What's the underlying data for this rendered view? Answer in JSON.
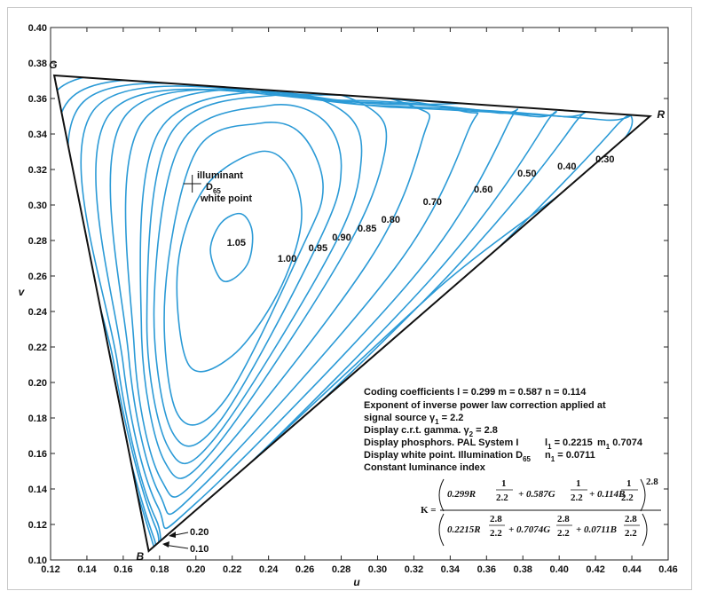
{
  "chart_data": {
    "type": "line",
    "xlabel": "u",
    "ylabel": "v",
    "xlim": [
      0.12,
      0.46
    ],
    "ylim": [
      0.1,
      0.4
    ],
    "x_ticks": [
      "0.12",
      "0.14",
      "0.16",
      "0.18",
      "0.20",
      "0.22",
      "0.24",
      "0.26",
      "0.28",
      "0.30",
      "0.32",
      "0.34",
      "0.36",
      "0.38",
      "0.40",
      "0.42",
      "0.44",
      "0.46"
    ],
    "y_ticks": [
      "0.10",
      "0.12",
      "0.14",
      "0.16",
      "0.18",
      "0.20",
      "0.22",
      "0.24",
      "0.26",
      "0.28",
      "0.30",
      "0.32",
      "0.34",
      "0.36",
      "0.38",
      "0.40"
    ],
    "grid": false,
    "line_color": "#2b9ad6",
    "triangle": {
      "vertices": [
        {
          "name": "G",
          "u": 0.122,
          "v": 0.373
        },
        {
          "name": "R",
          "u": 0.45,
          "v": 0.35
        },
        {
          "name": "B",
          "u": 0.174,
          "v": 0.105
        }
      ]
    },
    "white_point": {
      "u": 0.198,
      "v": 0.312
    },
    "white_point_label": [
      "illuminant",
      "D",
      "65",
      "white point"
    ],
    "contours": [
      {
        "level": "0.10",
        "points": [
          [
            0.177,
            0.107
          ],
          [
            0.148,
            0.215
          ],
          [
            0.124,
            0.365
          ],
          [
            0.3,
            0.357
          ],
          [
            0.44,
            0.349
          ],
          [
            0.33,
            0.25
          ],
          [
            0.18,
            0.107
          ]
        ]
      },
      {
        "level": "0.20",
        "points": [
          [
            0.177,
            0.112
          ],
          [
            0.152,
            0.21
          ],
          [
            0.132,
            0.361
          ],
          [
            0.31,
            0.355
          ],
          [
            0.424,
            0.348
          ],
          [
            0.43,
            0.343
          ],
          [
            0.34,
            0.25
          ],
          [
            0.187,
            0.111
          ]
        ]
      },
      {
        "level": "0.30",
        "points": [
          [
            0.178,
            0.118
          ],
          [
            0.155,
            0.21
          ],
          [
            0.138,
            0.358
          ],
          [
            0.3,
            0.356
          ],
          [
            0.4,
            0.35
          ],
          [
            0.407,
            0.344
          ],
          [
            0.335,
            0.256
          ],
          [
            0.194,
            0.118
          ]
        ]
      },
      {
        "level": "0.40",
        "points": [
          [
            0.178,
            0.123
          ],
          [
            0.157,
            0.21
          ],
          [
            0.145,
            0.355
          ],
          [
            0.29,
            0.358
          ],
          [
            0.385,
            0.35
          ],
          [
            0.392,
            0.345
          ],
          [
            0.33,
            0.259
          ],
          [
            0.198,
            0.124
          ]
        ]
      },
      {
        "level": "0.50",
        "points": [
          [
            0.179,
            0.13
          ],
          [
            0.16,
            0.21
          ],
          [
            0.153,
            0.352
          ],
          [
            0.28,
            0.359
          ],
          [
            0.365,
            0.352
          ],
          [
            0.372,
            0.346
          ],
          [
            0.322,
            0.262
          ],
          [
            0.2,
            0.132
          ]
        ]
      },
      {
        "level": "0.60",
        "points": [
          [
            0.18,
            0.137
          ],
          [
            0.163,
            0.215
          ],
          [
            0.161,
            0.35
          ],
          [
            0.27,
            0.362
          ],
          [
            0.346,
            0.353
          ],
          [
            0.35,
            0.342
          ],
          [
            0.31,
            0.265
          ],
          [
            0.202,
            0.14
          ]
        ]
      },
      {
        "level": "0.70",
        "points": [
          [
            0.181,
            0.145
          ],
          [
            0.166,
            0.22
          ],
          [
            0.17,
            0.346
          ],
          [
            0.26,
            0.366
          ],
          [
            0.321,
            0.355
          ],
          [
            0.325,
            0.338
          ],
          [
            0.295,
            0.268
          ],
          [
            0.205,
            0.15
          ]
        ]
      },
      {
        "level": "0.80",
        "points": [
          [
            0.183,
            0.155
          ],
          [
            0.17,
            0.23
          ],
          [
            0.18,
            0.342
          ],
          [
            0.25,
            0.365
          ],
          [
            0.295,
            0.355
          ],
          [
            0.304,
            0.33
          ],
          [
            0.28,
            0.27
          ],
          [
            0.208,
            0.16
          ]
        ]
      },
      {
        "level": "0.85",
        "points": [
          [
            0.185,
            0.163
          ],
          [
            0.173,
            0.235
          ],
          [
            0.186,
            0.34
          ],
          [
            0.245,
            0.362
          ],
          [
            0.282,
            0.352
          ],
          [
            0.291,
            0.325
          ],
          [
            0.275,
            0.275
          ],
          [
            0.21,
            0.168
          ]
        ]
      },
      {
        "level": "0.90",
        "points": [
          [
            0.187,
            0.172
          ],
          [
            0.177,
            0.245
          ],
          [
            0.192,
            0.335
          ],
          [
            0.24,
            0.356
          ],
          [
            0.27,
            0.348
          ],
          [
            0.28,
            0.32
          ],
          [
            0.267,
            0.278
          ],
          [
            0.213,
            0.178
          ]
        ]
      },
      {
        "level": "0.95",
        "points": [
          [
            0.19,
            0.182
          ],
          [
            0.183,
            0.25
          ],
          [
            0.2,
            0.33
          ],
          [
            0.235,
            0.346
          ],
          [
            0.258,
            0.34
          ],
          [
            0.27,
            0.31
          ],
          [
            0.258,
            0.275
          ],
          [
            0.216,
            0.19
          ]
        ]
      },
      {
        "level": "1.00",
        "points": [
          [
            0.196,
            0.21
          ],
          [
            0.19,
            0.265
          ],
          [
            0.205,
            0.31
          ],
          [
            0.235,
            0.33
          ],
          [
            0.252,
            0.32
          ],
          [
            0.258,
            0.29
          ],
          [
            0.245,
            0.25
          ],
          [
            0.22,
            0.215
          ]
        ]
      },
      {
        "level": "1.05",
        "points": [
          [
            0.213,
            0.259
          ],
          [
            0.208,
            0.275
          ],
          [
            0.214,
            0.29
          ],
          [
            0.225,
            0.295
          ],
          [
            0.231,
            0.285
          ],
          [
            0.229,
            0.268
          ],
          [
            0.22,
            0.258
          ]
        ]
      }
    ],
    "contour_labels": [
      {
        "text": "0.10",
        "u": 0.186,
        "v": 0.106
      },
      {
        "text": "0.20",
        "u": 0.186,
        "v": 0.116
      },
      {
        "text": "0.30",
        "u": 0.42,
        "v": 0.324
      },
      {
        "text": "0.40",
        "u": 0.399,
        "v": 0.32
      },
      {
        "text": "0.50",
        "u": 0.377,
        "v": 0.316
      },
      {
        "text": "0.60",
        "u": 0.353,
        "v": 0.307
      },
      {
        "text": "0.70",
        "u": 0.325,
        "v": 0.3
      },
      {
        "text": "0.80",
        "u": 0.302,
        "v": 0.29
      },
      {
        "text": "0.85",
        "u": 0.289,
        "v": 0.285
      },
      {
        "text": "0.90",
        "u": 0.275,
        "v": 0.28
      },
      {
        "text": "0.95",
        "u": 0.262,
        "v": 0.274
      },
      {
        "text": "1.00",
        "u": 0.245,
        "v": 0.268
      },
      {
        "text": "1.05",
        "u": 0.217,
        "v": 0.277
      }
    ]
  },
  "annotation": {
    "line1": "Coding coefficients  l = 0.299   m = 0.587   n = 0.114",
    "line2": "Exponent of inverse power law correction applied at",
    "line3": "signal source γ",
    "line3_sub": "1",
    "line3_tail": " = 2.2",
    "line4": "Display c.r.t. gamma.  γ",
    "line4_sub": "2",
    "line4_tail": " = 2.8",
    "line5": "Display phosphors.  PAL System I",
    "line5_l": "l",
    "line5_l_sub": "1",
    "line5_l_tail": " = 0.2215",
    "line5_m": "m",
    "line5_m_sub": "1",
    "line5_m_tail": " 0.7074",
    "line6": "Display white point.  Illumination D",
    "line6_sub": "65",
    "line6_n": "n",
    "line6_n_sub": "1",
    "line6_n_tail": " = 0.0711",
    "line7": "Constant luminance index"
  },
  "formula": {
    "lhs": "K =",
    "num_a": "0.299R",
    "num_b": "+ 0.587G",
    "num_c": "+ 0.114B",
    "num_exp_top": "1",
    "num_exp_bot": "2.2",
    "num_outer_exp": "2.8",
    "den_a": "0.2215R",
    "den_b": "+ 0.7074G",
    "den_c": "+ 0.0711B",
    "den_exp_top": "2.8",
    "den_exp_bot": "2.2"
  }
}
